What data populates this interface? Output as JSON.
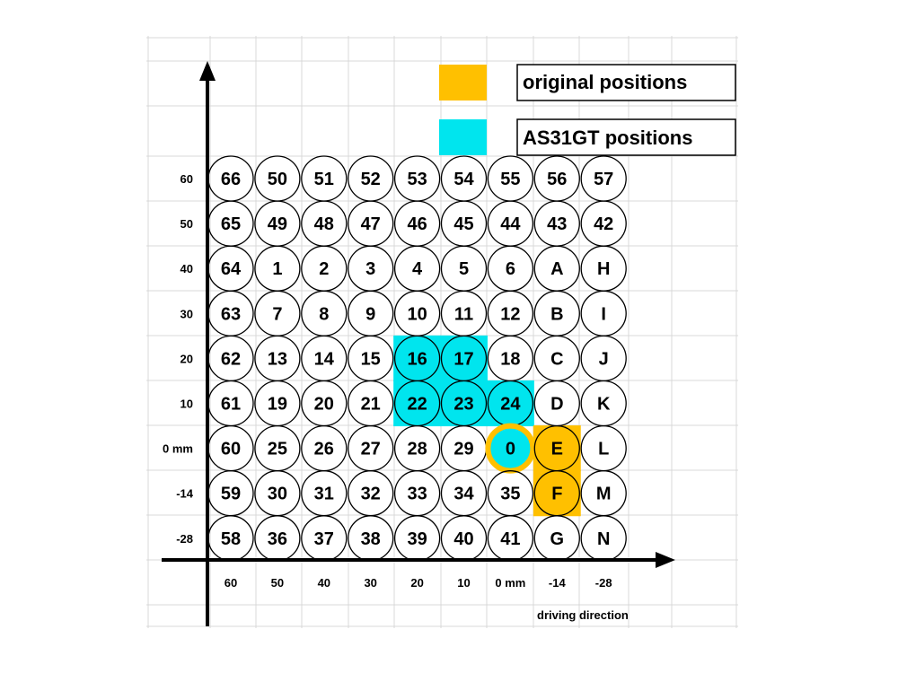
{
  "legend": [
    {
      "label": "original  positions",
      "color": "#FFC000"
    },
    {
      "label": "AS31GT positions",
      "color": "#00E5EE"
    }
  ],
  "y_axis_labels": [
    "60",
    "50",
    "40",
    "30",
    "20",
    "10",
    "0 mm",
    "-14",
    "-28"
  ],
  "x_axis_labels": [
    "60",
    "50",
    "40",
    "30",
    "20",
    "10",
    "0 mm",
    "-14",
    "-28"
  ],
  "x_axis_caption": "driving direction",
  "grid_rows": [
    [
      "66",
      "50",
      "51",
      "52",
      "53",
      "54",
      "55",
      "56",
      "57"
    ],
    [
      "65",
      "49",
      "48",
      "47",
      "46",
      "45",
      "44",
      "43",
      "42"
    ],
    [
      "64",
      "1",
      "2",
      "3",
      "4",
      "5",
      "6",
      "A",
      "H"
    ],
    [
      "63",
      "7",
      "8",
      "9",
      "10",
      "11",
      "12",
      "B",
      "I"
    ],
    [
      "62",
      "13",
      "14",
      "15",
      "16",
      "17",
      "18",
      "C",
      "J"
    ],
    [
      "61",
      "19",
      "20",
      "21",
      "22",
      "23",
      "24",
      "D",
      "K"
    ],
    [
      "60",
      "25",
      "26",
      "27",
      "28",
      "29",
      "0",
      "E",
      "L"
    ],
    [
      "59",
      "30",
      "31",
      "32",
      "33",
      "34",
      "35",
      "F",
      "M"
    ],
    [
      "58",
      "36",
      "37",
      "38",
      "39",
      "40",
      "41",
      "G",
      "N"
    ]
  ],
  "as31gt_positions": [
    "16",
    "17",
    "22",
    "23",
    "24",
    "0"
  ],
  "original_positions": [
    "E",
    "F",
    "0"
  ],
  "colors": {
    "original": "#FFC000",
    "as31gt": "#00E5EE",
    "gridline": "#D9D9D9",
    "axis": "#000000"
  }
}
